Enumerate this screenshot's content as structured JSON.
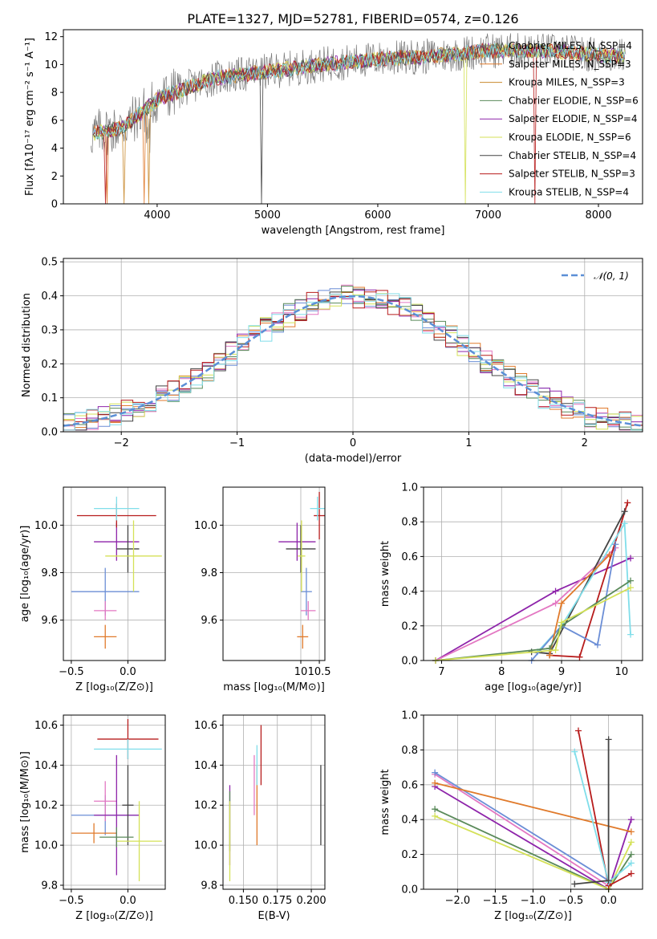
{
  "title": "PLATE=1327, MJD=52781, FIBERID=0574, z=0.126",
  "colors": [
    "#7a7a7a",
    "#e07a2b",
    "#c98a2e",
    "#5a8a5a",
    "#8e24aa",
    "#d4e157",
    "#444444",
    "#b71c1c",
    "#80deea",
    "#e377c2",
    "#6b8ed6"
  ],
  "chart_data": [
    {
      "id": "spectrum",
      "type": "line",
      "xlabel": "wavelength [Angstrom, rest frame]",
      "ylabel": "Flux [fλ10⁻¹⁷ erg cm⁻² s⁻¹ A⁻¹]",
      "xlim": [
        3150,
        8400
      ],
      "ylim": [
        0,
        12.5
      ],
      "xticks": [
        4000,
        5000,
        6000,
        7000,
        8000
      ],
      "yticks": [
        0,
        2,
        4,
        6,
        8,
        10,
        12
      ],
      "grid": false,
      "legend_position": "top-right",
      "series": [
        {
          "name": "Chabrier MILES, N_SSP=4",
          "color": "#7a7a7a"
        },
        {
          "name": "Salpeter MILES, N_SSP=3",
          "color": "#e07a2b"
        },
        {
          "name": "Kroupa MILES, N_SSP=3",
          "color": "#c98a2e"
        },
        {
          "name": "Chabrier ELODIE, N_SSP=6",
          "color": "#5a8a5a"
        },
        {
          "name": "Salpeter ELODIE, N_SSP=4",
          "color": "#8e24aa"
        },
        {
          "name": "Kroupa ELODIE, N_SSP=6",
          "color": "#d4e157"
        },
        {
          "name": "Chabrier STELIB, N_SSP=4",
          "color": "#444444"
        },
        {
          "name": "Salpeter STELIB, N_SSP=3",
          "color": "#b71c1c"
        },
        {
          "name": "Kroupa STELIB, N_SSP=4",
          "color": "#80deea"
        }
      ],
      "continuum": [
        [
          3400,
          5.0
        ],
        [
          3700,
          5.5
        ],
        [
          4000,
          7.5
        ],
        [
          4500,
          9.0
        ],
        [
          5000,
          9.5
        ],
        [
          5500,
          10.0
        ],
        [
          6000,
          10.4
        ],
        [
          6500,
          10.6
        ],
        [
          7000,
          11.0
        ],
        [
          7500,
          11.0
        ],
        [
          8000,
          10.7
        ],
        [
          8250,
          10.6
        ]
      ]
    },
    {
      "id": "residuals",
      "type": "line",
      "xlabel": "(data-model)/error",
      "ylabel": "Normed distribution",
      "xlim": [
        -2.5,
        2.5
      ],
      "ylim": [
        0,
        0.51
      ],
      "xticks": [
        -2,
        -1,
        0,
        1,
        2
      ],
      "yticks": [
        0.0,
        0.1,
        0.2,
        0.3,
        0.4,
        0.5
      ],
      "grid": true,
      "legend_position": "top-right",
      "legend": "𝒩(0, 1)"
    },
    {
      "id": "age_vs_Z",
      "type": "scatter",
      "xlabel": "Z [log₁₀(Z/Z⊙)]",
      "ylabel": "age  [log₁₀(age/yr)]",
      "xlim": [
        -0.57,
        0.33
      ],
      "ylim": [
        9.43,
        10.16
      ],
      "xticks": [
        -0.5,
        0.0
      ],
      "xtick_labels": [
        "−0.5",
        "0.0"
      ],
      "yticks": [
        9.6,
        9.8,
        10.0
      ],
      "grid": true,
      "points": [
        {
          "x": -0.2,
          "y": 9.72,
          "xerr": 0.3,
          "yerr": 0.1,
          "color": "#6b8ed6"
        },
        {
          "x": -0.2,
          "y": 9.53,
          "xerr": 0.1,
          "yerr": 0.05,
          "color": "#e07a2b"
        },
        {
          "x": -0.2,
          "y": 9.64,
          "xerr": 0.1,
          "yerr": 0.04,
          "color": "#e377c2"
        },
        {
          "x": -0.1,
          "y": 9.93,
          "xerr": 0.2,
          "yerr": 0.08,
          "color": "#8e24aa"
        },
        {
          "x": 0.0,
          "y": 9.9,
          "xerr": 0.1,
          "yerr": 0.1,
          "color": "#444444"
        },
        {
          "x": 0.05,
          "y": 9.87,
          "xerr": 0.25,
          "yerr": 0.15,
          "color": "#d4e157"
        },
        {
          "x": -0.1,
          "y": 10.04,
          "xerr": 0.35,
          "yerr": 0.05,
          "color": "#b71c1c"
        },
        {
          "x": -0.1,
          "y": 10.07,
          "xerr": 0.2,
          "yerr": 0.05,
          "color": "#80deea"
        }
      ]
    },
    {
      "id": "age_vs_mass",
      "type": "scatter",
      "xlabel": "mass [log₁₀(M/M⊙)]",
      "ylabel": "",
      "xlim": [
        7.9,
        10.65
      ],
      "ylim": [
        9.43,
        10.16
      ],
      "xticks": [
        10.0,
        10.5
      ],
      "yticks": [
        9.6,
        9.8,
        10.0
      ],
      "grid": true,
      "points": [
        {
          "x": 10.15,
          "y": 9.72,
          "xerr": 0.15,
          "yerr": 0.1,
          "color": "#6b8ed6"
        },
        {
          "x": 10.05,
          "y": 9.53,
          "xerr": 0.15,
          "yerr": 0.05,
          "color": "#e07a2b"
        },
        {
          "x": 10.2,
          "y": 9.64,
          "xerr": 0.2,
          "yerr": 0.04,
          "color": "#e377c2"
        },
        {
          "x": 9.9,
          "y": 9.93,
          "xerr": 0.5,
          "yerr": 0.08,
          "color": "#8e24aa"
        },
        {
          "x": 10.0,
          "y": 9.9,
          "xerr": 0.4,
          "yerr": 0.1,
          "color": "#444444"
        },
        {
          "x": 10.02,
          "y": 9.87,
          "xerr": 0.1,
          "yerr": 0.15,
          "color": "#d4e157"
        },
        {
          "x": 10.5,
          "y": 10.04,
          "xerr": 0.15,
          "yerr": 0.1,
          "color": "#b71c1c"
        },
        {
          "x": 10.45,
          "y": 10.07,
          "xerr": 0.2,
          "yerr": 0.05,
          "color": "#80deea"
        }
      ]
    },
    {
      "id": "weight_vs_age",
      "type": "line",
      "xlabel": "age  [log₁₀(age/yr)]",
      "ylabel": "mass weight",
      "xlim": [
        6.7,
        10.35
      ],
      "ylim": [
        0,
        1.0
      ],
      "xticks": [
        7,
        8,
        9,
        10
      ],
      "yticks": [
        0.0,
        0.2,
        0.4,
        0.6,
        0.8,
        1.0
      ],
      "grid": true,
      "series": [
        {
          "color": "#8e24aa",
          "x": [
            6.9,
            8.9,
            10.15
          ],
          "y": [
            0.0,
            0.4,
            0.59
          ]
        },
        {
          "color": "#e377c2",
          "x": [
            6.9,
            8.9,
            9.9
          ],
          "y": [
            0.0,
            0.33,
            0.65
          ]
        },
        {
          "color": "#b71c1c",
          "x": [
            8.8,
            9.3,
            10.1
          ],
          "y": [
            0.03,
            0.02,
            0.91
          ]
        },
        {
          "color": "#444444",
          "x": [
            8.5,
            8.8,
            10.05
          ],
          "y": [
            0.05,
            0.04,
            0.86
          ]
        },
        {
          "color": "#80deea",
          "x": [
            8.6,
            9.0,
            10.05,
            10.15
          ],
          "y": [
            0.05,
            0.2,
            0.79,
            0.15
          ]
        },
        {
          "color": "#6b8ed6",
          "x": [
            8.5,
            9.0,
            9.6,
            9.9
          ],
          "y": [
            0.0,
            0.2,
            0.09,
            0.67
          ]
        },
        {
          "color": "#e07a2b",
          "x": [
            8.8,
            9.0,
            9.8
          ],
          "y": [
            0.03,
            0.33,
            0.61
          ]
        },
        {
          "color": "#5a8a5a",
          "x": [
            6.9,
            8.8,
            9.0,
            10.15
          ],
          "y": [
            0.0,
            0.07,
            0.2,
            0.46
          ]
        },
        {
          "color": "#d4e157",
          "x": [
            6.9,
            8.9,
            9.0,
            10.15
          ],
          "y": [
            0.0,
            0.06,
            0.22,
            0.42
          ]
        }
      ]
    },
    {
      "id": "mass_vs_Z",
      "type": "scatter",
      "xlabel": "Z [log₁₀(Z/Z⊙)]",
      "ylabel": "mass [log₁₀(M/M⊙)]",
      "xlim": [
        -0.57,
        0.33
      ],
      "ylim": [
        9.78,
        10.65
      ],
      "xticks": [
        -0.5,
        0.0
      ],
      "xtick_labels": [
        "−0.5",
        "0.0"
      ],
      "yticks": [
        9.8,
        10.0,
        10.2,
        10.4,
        10.6
      ],
      "grid": true,
      "points": [
        {
          "x": -0.2,
          "y": 10.15,
          "xerr": 0.3,
          "yerr": 0.1,
          "color": "#6b8ed6"
        },
        {
          "x": -0.3,
          "y": 10.06,
          "xerr": 0.2,
          "yerr": 0.05,
          "color": "#e07a2b"
        },
        {
          "x": -0.2,
          "y": 10.22,
          "xerr": 0.1,
          "yerr": 0.1,
          "color": "#e377c2"
        },
        {
          "x": -0.1,
          "y": 10.15,
          "xerr": 0.2,
          "yerr": 0.3,
          "color": "#8e24aa"
        },
        {
          "x": 0.0,
          "y": 10.2,
          "xerr": 0.05,
          "yerr": 0.2,
          "color": "#444444"
        },
        {
          "x": 0.1,
          "y": 10.02,
          "xerr": 0.2,
          "yerr": 0.2,
          "color": "#d4e157"
        },
        {
          "x": -0.1,
          "y": 10.04,
          "xerr": 0.15,
          "yerr": 0.05,
          "color": "#5a8a5a"
        },
        {
          "x": 0.0,
          "y": 10.53,
          "xerr": 0.27,
          "yerr": 0.1,
          "color": "#b71c1c"
        },
        {
          "x": 0.0,
          "y": 10.48,
          "xerr": 0.3,
          "yerr": 0.05,
          "color": "#80deea"
        }
      ]
    },
    {
      "id": "mass_vs_EBV",
      "type": "scatter",
      "xlabel": "E(B-V)",
      "ylabel": "",
      "xlim": [
        0.135,
        0.21
      ],
      "ylim": [
        9.78,
        10.65
      ],
      "xticks": [
        0.15,
        0.175,
        0.2
      ],
      "xtick_labels": [
        "0.150",
        "0.175",
        "0.200"
      ],
      "yticks": [
        9.8,
        10.0,
        10.2,
        10.4,
        10.6
      ],
      "grid": true,
      "points": [
        {
          "x": 0.14,
          "y": 10.1,
          "yerr": 0.2,
          "color": "#8e24aa"
        },
        {
          "x": 0.14,
          "y": 10.12,
          "yerr": 0.15,
          "color": "#5a8a5a"
        },
        {
          "x": 0.14,
          "y": 10.02,
          "yerr": 0.2,
          "color": "#d4e157"
        },
        {
          "x": 0.158,
          "y": 10.3,
          "yerr": 0.15,
          "color": "#e377c2"
        },
        {
          "x": 0.16,
          "y": 10.2,
          "yerr": 0.2,
          "color": "#e07a2b"
        },
        {
          "x": 0.16,
          "y": 10.4,
          "yerr": 0.1,
          "color": "#80deea"
        },
        {
          "x": 0.163,
          "y": 10.45,
          "yerr": 0.15,
          "color": "#b71c1c"
        },
        {
          "x": 0.207,
          "y": 10.2,
          "yerr": 0.2,
          "color": "#444444"
        }
      ]
    },
    {
      "id": "weight_vs_Z",
      "type": "line",
      "xlabel": "Z [log₁₀(Z/Z⊙)]",
      "ylabel": "mass weight",
      "xlim": [
        -2.45,
        0.45
      ],
      "ylim": [
        0,
        1.0
      ],
      "xticks": [
        -2.0,
        -1.5,
        -1.0,
        -0.5,
        0.0
      ],
      "xtick_labels": [
        "−2.0",
        "−1.5",
        "−1.0",
        "−0.5",
        "0.0"
      ],
      "yticks": [
        0.0,
        0.2,
        0.4,
        0.6,
        0.8,
        1.0
      ],
      "grid": true,
      "series": [
        {
          "color": "#8e24aa",
          "x": [
            -2.3,
            0.0,
            0.3
          ],
          "y": [
            0.59,
            0.0,
            0.4
          ]
        },
        {
          "color": "#e377c2",
          "x": [
            -2.3,
            0.0
          ],
          "y": [
            0.66,
            0.02
          ]
        },
        {
          "color": "#6b8ed6",
          "x": [
            -2.3,
            0.0
          ],
          "y": [
            0.67,
            0.05
          ]
        },
        {
          "color": "#e07a2b",
          "x": [
            -2.3,
            0.3
          ],
          "y": [
            0.61,
            0.33
          ]
        },
        {
          "color": "#5a8a5a",
          "x": [
            -2.3,
            0.0,
            0.3
          ],
          "y": [
            0.46,
            0.0,
            0.2
          ]
        },
        {
          "color": "#d4e157",
          "x": [
            -2.3,
            0.0,
            0.3
          ],
          "y": [
            0.42,
            0.0,
            0.27
          ]
        },
        {
          "color": "#b71c1c",
          "x": [
            -0.4,
            0.0,
            0.3
          ],
          "y": [
            0.91,
            0.02,
            0.09
          ]
        },
        {
          "color": "#80deea",
          "x": [
            -0.45,
            0.0,
            0.3
          ],
          "y": [
            0.79,
            0.04,
            0.15
          ]
        },
        {
          "color": "#444444",
          "x": [
            -0.45,
            0.0,
            0.0
          ],
          "y": [
            0.03,
            0.05,
            0.86
          ]
        }
      ]
    }
  ]
}
